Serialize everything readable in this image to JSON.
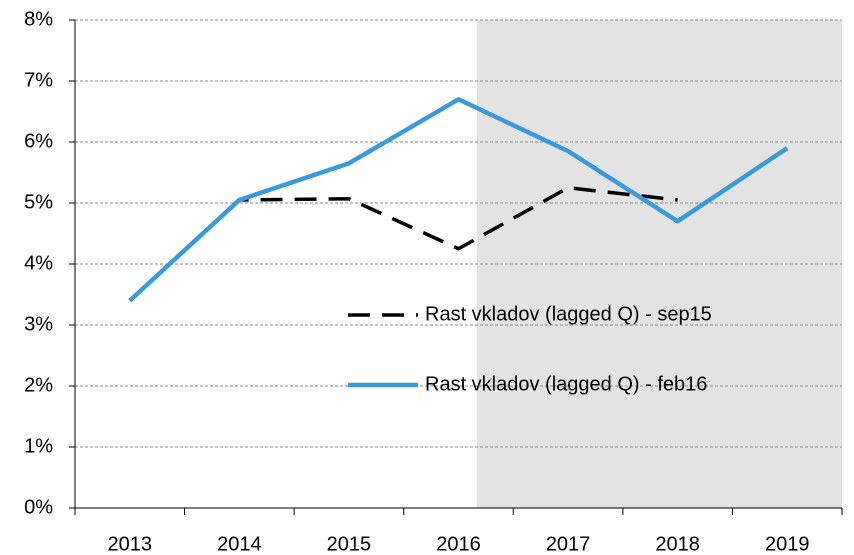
{
  "chart_data": {
    "type": "line",
    "categories": [
      "2013",
      "2014",
      "2015",
      "2016",
      "2017",
      "2018",
      "2019"
    ],
    "series": [
      {
        "name": "Rast vkladov (lagged Q) - sep15",
        "color": "#000000",
        "dashed": true,
        "values": [
          3.4,
          5.05,
          5.07,
          4.25,
          5.25,
          5.05,
          null
        ]
      },
      {
        "name": "Rast vkladov (lagged Q) - feb16",
        "color": "#3b9ad9",
        "dashed": false,
        "values": [
          3.4,
          5.05,
          5.65,
          6.7,
          5.85,
          4.7,
          5.9
        ]
      }
    ],
    "ylim": [
      0,
      8
    ],
    "yticks": [
      {
        "value": 0,
        "label": "0%"
      },
      {
        "value": 1,
        "label": "1%"
      },
      {
        "value": 2,
        "label": "2%"
      },
      {
        "value": 3,
        "label": "3%"
      },
      {
        "value": 4,
        "label": "4%"
      },
      {
        "value": 5,
        "label": "5%"
      },
      {
        "value": 6,
        "label": "6%"
      },
      {
        "value": 7,
        "label": "7%"
      },
      {
        "value": 8,
        "label": "8%"
      }
    ],
    "grid": true
  }
}
